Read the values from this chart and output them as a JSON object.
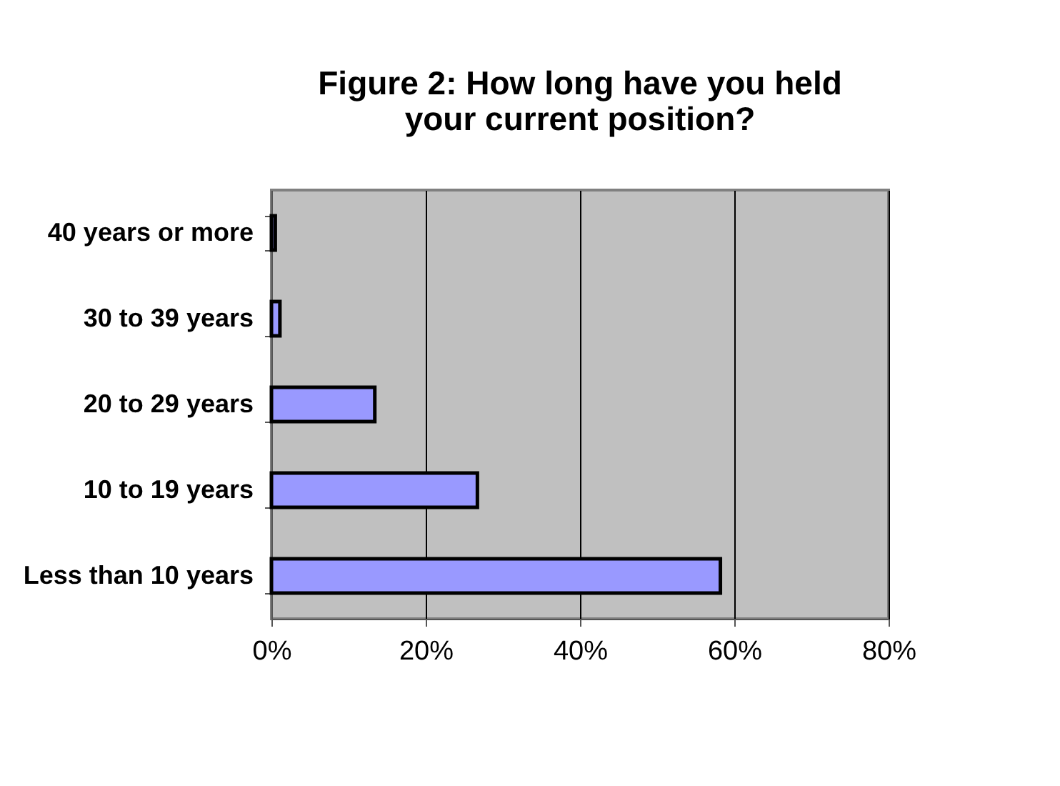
{
  "chart_data": {
    "type": "bar",
    "orientation": "horizontal",
    "title": "Figure 2: How long have you held your current position?",
    "categories": [
      "40 years or more",
      "30 to 39 years",
      "20 to 29 years",
      "10 to 19 years",
      "Less than 10 years"
    ],
    "values": [
      0.5,
      1.1,
      13.4,
      26.7,
      58.2
    ],
    "color": "#9999ff",
    "xlim": [
      0,
      80
    ],
    "xticks": [
      {
        "value": 0,
        "label": "0%"
      },
      {
        "value": 20,
        "label": "20%"
      },
      {
        "value": 40,
        "label": "40%"
      },
      {
        "value": 60,
        "label": "60%"
      },
      {
        "value": 80,
        "label": "80%"
      }
    ],
    "grid": "x"
  }
}
